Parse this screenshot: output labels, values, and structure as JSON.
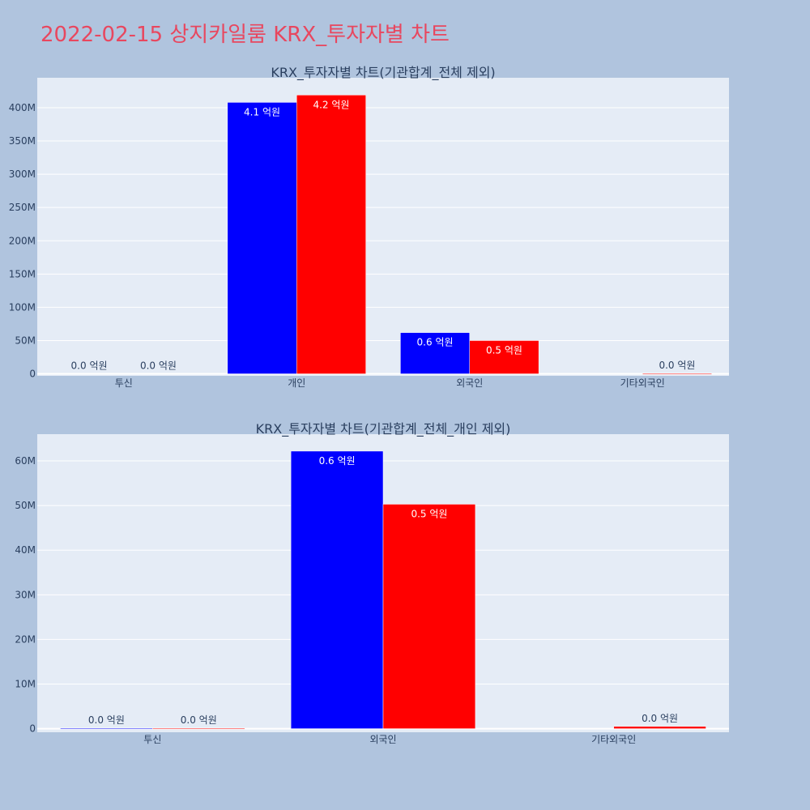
{
  "page": {
    "title": "2022-02-15 상지카일룸 KRX_투자자별 차트",
    "background": "#b0c4de",
    "title_color": "#e8475f"
  },
  "colors": {
    "plot_bg": "#e5ecf6",
    "grid": "#ffffff",
    "series_1": "#0000ff",
    "series_2": "#ff0000",
    "text": "#2a3f5f"
  },
  "chart_data": [
    {
      "type": "bar",
      "title": "KRX_투자자별 차트(기관합계_전체 제외)",
      "categories": [
        "투신",
        "개인",
        "외국인",
        "기타외국인"
      ],
      "series": [
        {
          "values": [
            0,
            408000000,
            62000000,
            0
          ],
          "labels": [
            "0.0 억원",
            "4.1 억원",
            "0.6 억원",
            ""
          ]
        },
        {
          "values": [
            0,
            419000000,
            50000000,
            500000
          ],
          "labels": [
            "0.0 억원",
            "4.2 억원",
            "0.5 억원",
            "0.0 억원"
          ]
        }
      ],
      "ylim": [
        -3000000,
        445000000
      ],
      "yticks": [
        0,
        50000000,
        100000000,
        150000000,
        200000000,
        250000000,
        300000000,
        350000000,
        400000000
      ],
      "ytick_labels": [
        "0",
        "50M",
        "100M",
        "150M",
        "200M",
        "250M",
        "300M",
        "350M",
        "400M"
      ],
      "grid": true,
      "legend": "none"
    },
    {
      "type": "bar",
      "title": "KRX_투자자별 차트(기관합계_전체_개인 제외)",
      "categories": [
        "투신",
        "외국인",
        "기타외국인"
      ],
      "series": [
        {
          "values": [
            90000,
            62200000,
            0
          ],
          "labels": [
            "0.0 억원",
            "0.6 억원",
            ""
          ]
        },
        {
          "values": [
            90000,
            50300000,
            500000
          ],
          "labels": [
            "0.0 억원",
            "0.5 억원",
            "0.0 억원"
          ]
        }
      ],
      "ylim": [
        -800000,
        66000000
      ],
      "yticks": [
        0,
        10000000,
        20000000,
        30000000,
        40000000,
        50000000,
        60000000
      ],
      "ytick_labels": [
        "0",
        "10M",
        "20M",
        "30M",
        "40M",
        "50M",
        "60M"
      ],
      "grid": true,
      "legend": "none"
    }
  ]
}
